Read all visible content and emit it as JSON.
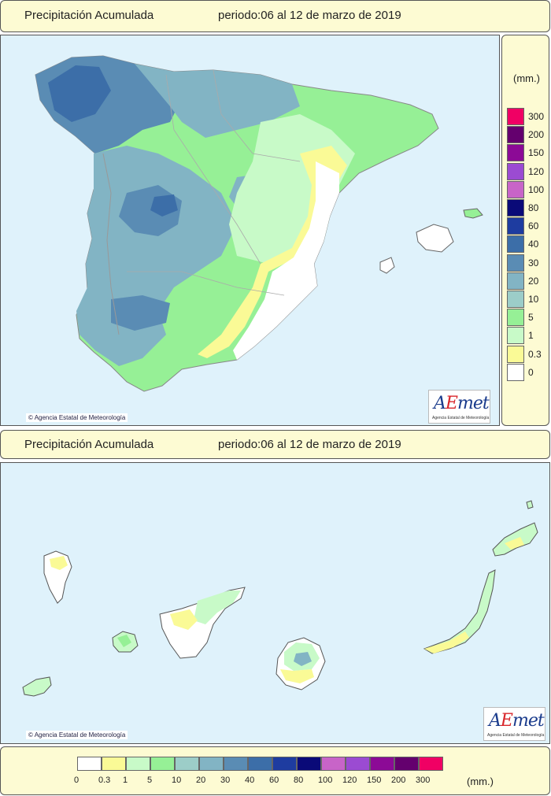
{
  "top_panel": {
    "title": "Precipitación Acumulada",
    "period": "periodo:06 al 12 de marzo de 2019"
  },
  "bottom_panel": {
    "title": "Precipitación Acumulada",
    "period": "periodo:06 al 12 de marzo de 2019"
  },
  "credit_text": "Agencia Estatal de Meteorología",
  "logo": {
    "text_a": "A",
    "text_e": "E",
    "text_rest": "met",
    "subtext": "Agencia Estatal de Meteorología"
  },
  "legend": {
    "unit": "(mm.)",
    "vertical_labels": [
      "300",
      "200",
      "150",
      "120",
      "100",
      "80",
      "60",
      "40",
      "30",
      "20",
      "10",
      "5",
      "1",
      "0.3",
      "0"
    ],
    "horizontal_labels": [
      "0",
      "0.3",
      "1",
      "5",
      "10",
      "20",
      "30",
      "40",
      "60",
      "80",
      "100",
      "120",
      "150",
      "200",
      "300"
    ],
    "classes": [
      {
        "label": "0",
        "color": "#ffffff"
      },
      {
        "label": "0.3",
        "color": "#fafa96"
      },
      {
        "label": "1",
        "color": "#c8fac8"
      },
      {
        "label": "5",
        "color": "#96f096"
      },
      {
        "label": "10",
        "color": "#9ccdc8"
      },
      {
        "label": "20",
        "color": "#82b4c4"
      },
      {
        "label": "30",
        "color": "#5a8cb4"
      },
      {
        "label": "40",
        "color": "#3c6ea8"
      },
      {
        "label": "60",
        "color": "#1e3ca0"
      },
      {
        "label": "80",
        "color": "#0a0a78"
      },
      {
        "label": "100",
        "color": "#c864c8"
      },
      {
        "label": "120",
        "color": "#9b4bd2"
      },
      {
        "label": "150",
        "color": "#8c0a96"
      },
      {
        "label": "200",
        "color": "#64006e"
      },
      {
        "label": "300",
        "color": "#f00064"
      }
    ]
  },
  "colors": {
    "sea": "#dff2fb",
    "panel_bg": "#fdfbd3",
    "border": "#555555"
  }
}
